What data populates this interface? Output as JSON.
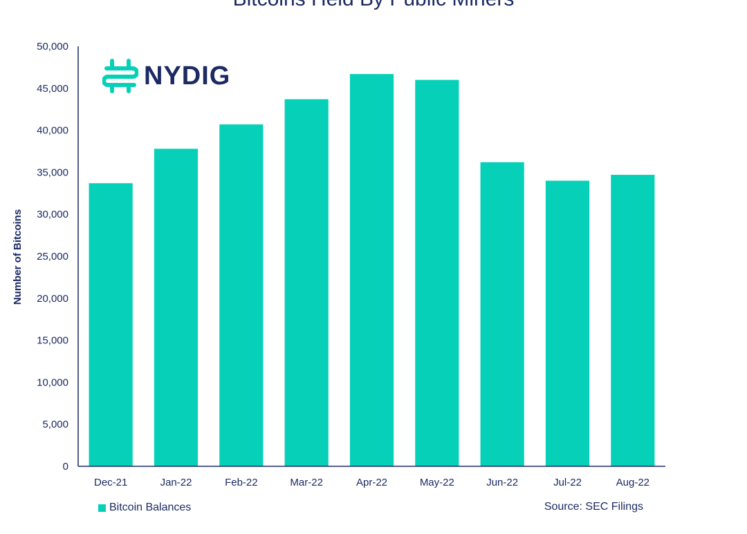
{
  "logo": {
    "text": "NYDIG"
  },
  "chart_data": {
    "type": "bar",
    "title": "Bitcoins Held By Public Miners",
    "xlabel": "",
    "ylabel": "Number of Bitcoins",
    "categories": [
      "Dec-21",
      "Jan-22",
      "Feb-22",
      "Mar-22",
      "Apr-22",
      "May-22",
      "Jun-22",
      "Jul-22",
      "Aug-22"
    ],
    "series": [
      {
        "name": "Bitcoin Balances",
        "values": [
          33700,
          37800,
          40700,
          43700,
          46700,
          46000,
          36200,
          34000,
          34700
        ]
      }
    ],
    "ylim": [
      0,
      50000
    ],
    "yticks": [
      0,
      5000,
      10000,
      15000,
      20000,
      25000,
      30000,
      35000,
      40000,
      45000,
      50000
    ],
    "ytick_labels": [
      "0",
      "5,000",
      "10,000",
      "15,000",
      "20,000",
      "25,000",
      "30,000",
      "35,000",
      "40,000",
      "45,000",
      "50,000"
    ],
    "grid": false,
    "legend_position": "bottom-left",
    "source": "Source: SEC Filings",
    "bar_color": "#06d1b8",
    "axis_color": "#1b2a63"
  }
}
